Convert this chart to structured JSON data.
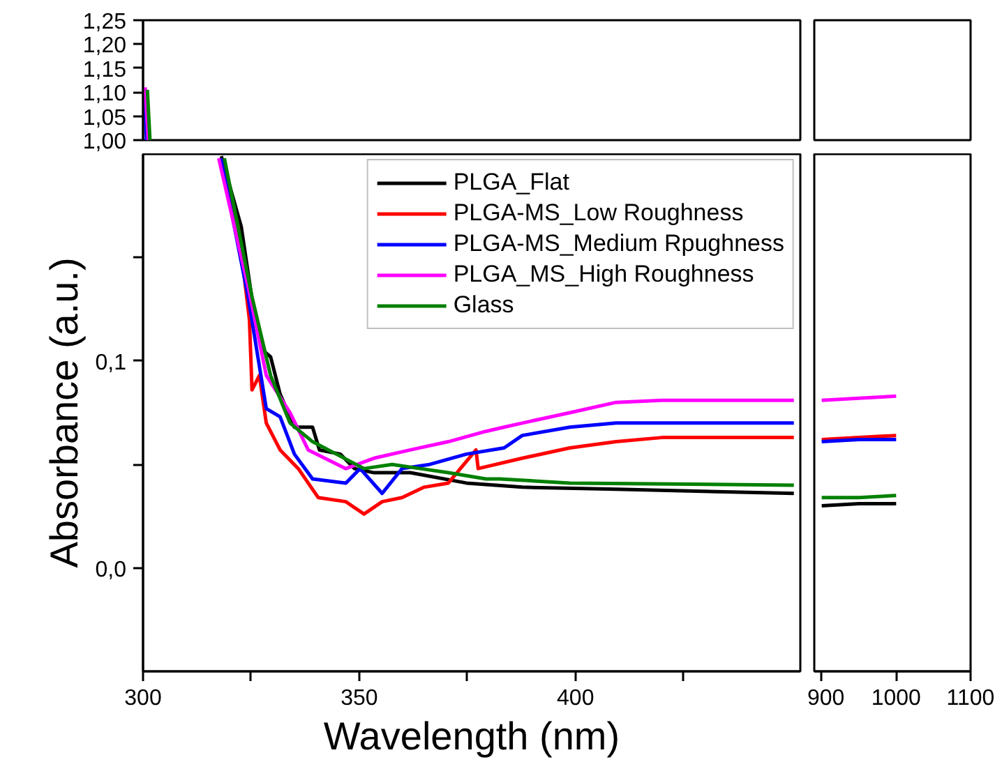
{
  "chart_data": [
    {
      "type": "line",
      "xlim": [
        300,
        452
      ],
      "ylim": [
        1.0,
        1.25
      ],
      "yticks": [
        {
          "value": 1.0,
          "label": "1,00"
        },
        {
          "value": 1.05,
          "label": "1,05"
        },
        {
          "value": 1.1,
          "label": "1,10"
        },
        {
          "value": 1.15,
          "label": "1,15"
        },
        {
          "value": 1.2,
          "label": "1,20"
        },
        {
          "value": 1.25,
          "label": "1,25"
        }
      ],
      "tick_labels": "y",
      "series": [
        {
          "color": "#0000ff",
          "x": [
            300.8,
            300.4
          ],
          "values": [
            1.0,
            1.09
          ]
        },
        {
          "color": "#ff00ff",
          "x": [
            301.2,
            300.5
          ],
          "values": [
            1.0,
            1.11
          ]
        },
        {
          "color": "#008000",
          "x": [
            301.6,
            301.0
          ],
          "values": [
            1.0,
            1.105
          ]
        }
      ]
    },
    {
      "type": "line",
      "xlim": [
        890,
        1100
      ],
      "ylim": [
        1.0,
        1.25
      ],
      "tick_labels": false
    },
    {
      "type": "line",
      "xlabel": "Wavelength (nm)",
      "ylabel": "Absorbance (a.u.)",
      "xlim": [
        300,
        452
      ],
      "ylim": [
        -0.05,
        0.2
      ],
      "xticks": [
        300,
        {
          "value": 325,
          "label": null
        },
        350,
        {
          "value": 375,
          "label": null
        },
        400,
        {
          "value": 425,
          "label": null
        }
      ],
      "yticks": [
        {
          "value": 0.0,
          "label": "0,0"
        },
        {
          "value": 0.05,
          "label": null
        },
        {
          "value": 0.1,
          "label": "0,1"
        },
        {
          "value": 0.15,
          "label": null
        }
      ],
      "legend": "top right",
      "series": [
        {
          "name": "PLGA_Flat",
          "color": "#000000",
          "x": [
            318.1,
            322.7,
            325.2,
            327.8,
            329.5,
            331.7,
            335,
            339.2,
            340.8,
            345.6,
            348.9,
            353.4,
            361.8,
            374.8,
            387.7,
            409.4,
            450.5
          ],
          "values": [
            0.199,
            0.165,
            0.13,
            0.105,
            0.102,
            0.084,
            0.068,
            0.068,
            0.057,
            0.055,
            0.048,
            0.046,
            0.046,
            0.041,
            0.039,
            0.038,
            0.036
          ]
        },
        {
          "name": "PLGA-MS_Low Roughness",
          "color": "#ff0000",
          "x": [
            318,
            322,
            324.6,
            325.2,
            326.9,
            328.5,
            331.7,
            335.9,
            340.5,
            346.9,
            351.1,
            355.3,
            359.9,
            365,
            370.6,
            377,
            377.5,
            387.7,
            398.7,
            409.4,
            420,
            450.5
          ],
          "values": [
            0.197,
            0.165,
            0.12,
            0.086,
            0.093,
            0.07,
            0.057,
            0.048,
            0.034,
            0.032,
            0.026,
            0.032,
            0.034,
            0.039,
            0.041,
            0.057,
            0.048,
            0.053,
            0.058,
            0.061,
            0.063,
            0.063
          ]
        },
        {
          "name": "PLGA-MS_Medium Rpughness",
          "color": "#0000ff",
          "x": [
            318,
            324.3,
            328.5,
            331.7,
            335,
            339.2,
            346.9,
            350.2,
            355.3,
            359.9,
            366.3,
            374.8,
            383.5,
            387.7,
            398.7,
            409.4,
            450.5
          ],
          "values": [
            0.198,
            0.131,
            0.077,
            0.073,
            0.055,
            0.043,
            0.041,
            0.048,
            0.036,
            0.048,
            0.05,
            0.055,
            0.058,
            0.064,
            0.068,
            0.07,
            0.07
          ]
        },
        {
          "name": "PLGA_MS_High Roughness",
          "color": "#ff00ff",
          "x": [
            317.5,
            324.3,
            328.5,
            334,
            338.2,
            346.9,
            353.4,
            361.8,
            370.6,
            379.3,
            383.5,
            387.7,
            398.7,
            409.4,
            420,
            450.5
          ],
          "values": [
            0.198,
            0.136,
            0.093,
            0.075,
            0.057,
            0.048,
            0.053,
            0.057,
            0.061,
            0.066,
            0.068,
            0.07,
            0.075,
            0.08,
            0.081,
            0.081
          ]
        },
        {
          "name": "Glass",
          "color": "#008000",
          "x": [
            318.8,
            325.2,
            329.5,
            334,
            339.2,
            344.7,
            351.1,
            357.6,
            364.1,
            370.6,
            379.3,
            382.5,
            398.7,
            450.5
          ],
          "values": [
            0.198,
            0.131,
            0.093,
            0.07,
            0.061,
            0.055,
            0.048,
            0.05,
            0.048,
            0.046,
            0.043,
            0.043,
            0.041,
            0.04
          ]
        }
      ]
    },
    {
      "type": "line",
      "xlim": [
        890,
        1100
      ],
      "ylim": [
        -0.05,
        0.2
      ],
      "xticks": [
        900,
        1000,
        1100
      ],
      "tick_labels": "x",
      "series": [
        {
          "color": "#000000",
          "x": [
            900,
            950,
            1000
          ],
          "values": [
            0.03,
            0.031,
            0.031
          ]
        },
        {
          "color": "#ff0000",
          "x": [
            900,
            950,
            1000
          ],
          "values": [
            0.062,
            0.063,
            0.064
          ]
        },
        {
          "color": "#0000ff",
          "x": [
            900,
            950,
            1000
          ],
          "values": [
            0.061,
            0.062,
            0.062
          ]
        },
        {
          "color": "#ff00ff",
          "x": [
            900,
            950,
            1000
          ],
          "values": [
            0.081,
            0.082,
            0.083
          ]
        },
        {
          "color": "#008000",
          "x": [
            900,
            950,
            1000
          ],
          "values": [
            0.034,
            0.034,
            0.035
          ]
        }
      ]
    }
  ]
}
